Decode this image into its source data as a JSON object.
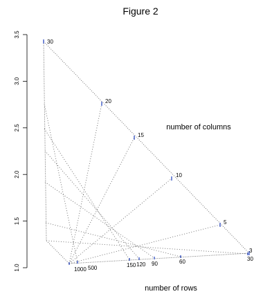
{
  "chart_data": {
    "type": "line",
    "title": "Figure 2",
    "y_axis": {
      "ticks": [
        "1.0",
        "1.5",
        "2.0",
        "2.5",
        "3.0",
        "3.5"
      ],
      "ylim": [
        1.0,
        3.5
      ]
    },
    "annotations": {
      "columns_label": "number of columns",
      "rows_label": "number of rows"
    },
    "column_endpoint_labels": [
      "30",
      "20",
      "15",
      "10",
      "5",
      "3"
    ],
    "row_endpoint_labels": [
      "1000",
      "500",
      "150",
      "120",
      "90",
      "60",
      "30"
    ],
    "grid": false,
    "line_style": "dotted",
    "colors": {
      "lines": "#666666",
      "markers": "#1f3fbf",
      "text": "#000000"
    }
  }
}
